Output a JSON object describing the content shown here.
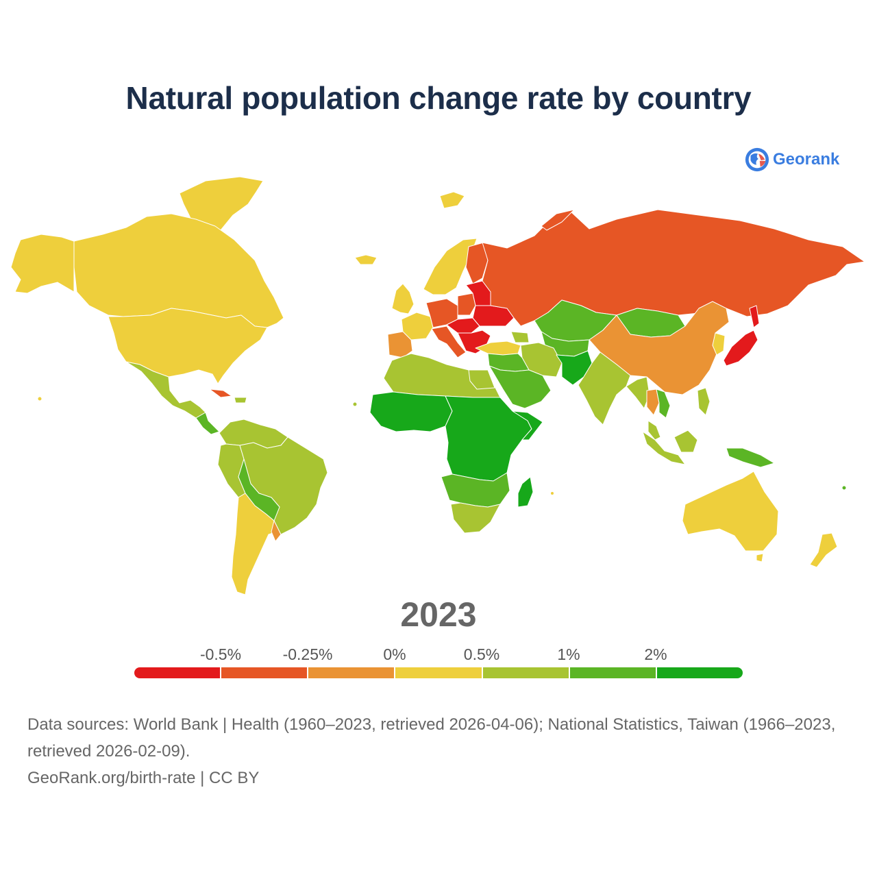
{
  "title": "Natural population change rate by country",
  "brand": {
    "name": "Georank",
    "icon": "globe-logo-icon"
  },
  "year": "2023",
  "legend": {
    "labels": [
      "-0.5%",
      "-0.25%",
      "0%",
      "0.5%",
      "1%",
      "2%"
    ],
    "colors": [
      "#e31a1c",
      "#e65625",
      "#ea9334",
      "#eecf3c",
      "#a8c432",
      "#5bb525",
      "#17a81a"
    ]
  },
  "palette": {
    "very_negative": "#e31a1c",
    "negative": "#e65625",
    "slightly_negative": "#ea9334",
    "low_positive": "#eecf3c",
    "moderate_positive": "#a8c432",
    "high_positive": "#5bb525",
    "very_high_positive": "#17a81a"
  },
  "footer": {
    "sources": "Data sources: World Bank | Health (1960–2023, retrieved 2026-04-06); National Statistics, Taiwan (1966–2023, retrieved 2026-02-09).",
    "credit": "GeoRank.org/birth-rate | CC BY"
  }
}
